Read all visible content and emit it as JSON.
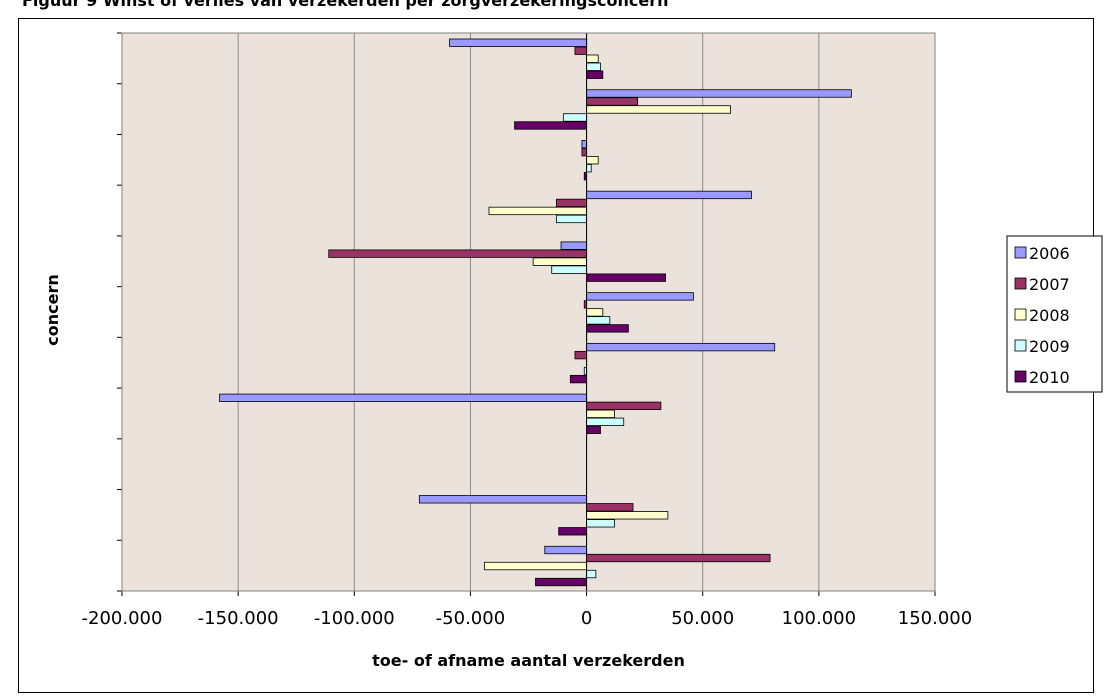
{
  "figure": {
    "title": "Figuur 9 Winst of verlies van verzekerden per zorgverzekeringsconcern"
  },
  "chart_data": {
    "type": "bar",
    "orientation": "horizontal",
    "title": "",
    "xlabel": "toe- of afname aantal verzekerden",
    "ylabel": "concern",
    "xlim": [
      -200000,
      150000
    ],
    "x_ticks": [
      -200000,
      -150000,
      -100000,
      -50000,
      0,
      50000,
      100000,
      150000
    ],
    "x_tick_labels": [
      "-200.000",
      "-150.000",
      "-100.000",
      "-50.000",
      "0",
      "50.000",
      "100.000",
      "150.000"
    ],
    "grid": true,
    "legend_position": "right",
    "category_count": 11,
    "series": [
      {
        "name": "2006",
        "color": "#9999ff",
        "values": [
          -59000,
          114000,
          -2000,
          71000,
          -11000,
          46000,
          81000,
          -158000,
          0,
          -72000,
          -18000
        ]
      },
      {
        "name": "2007",
        "color": "#993366",
        "values": [
          -5000,
          22000,
          -2000,
          -13000,
          -111000,
          -1000,
          -5000,
          32000,
          0,
          20000,
          79000
        ]
      },
      {
        "name": "2008",
        "color": "#ffffcc",
        "values": [
          5000,
          62000,
          5000,
          -42000,
          -23000,
          7000,
          0,
          12000,
          0,
          35000,
          -44000
        ]
      },
      {
        "name": "2009",
        "color": "#ccffff",
        "values": [
          6000,
          -10000,
          2000,
          -13000,
          -15000,
          10000,
          -1000,
          16000,
          0,
          12000,
          4000
        ]
      },
      {
        "name": "2010",
        "color": "#660066",
        "values": [
          7000,
          -31000,
          -1000,
          0,
          34000,
          18000,
          -7000,
          6000,
          0,
          -12000,
          -22000
        ]
      }
    ]
  }
}
